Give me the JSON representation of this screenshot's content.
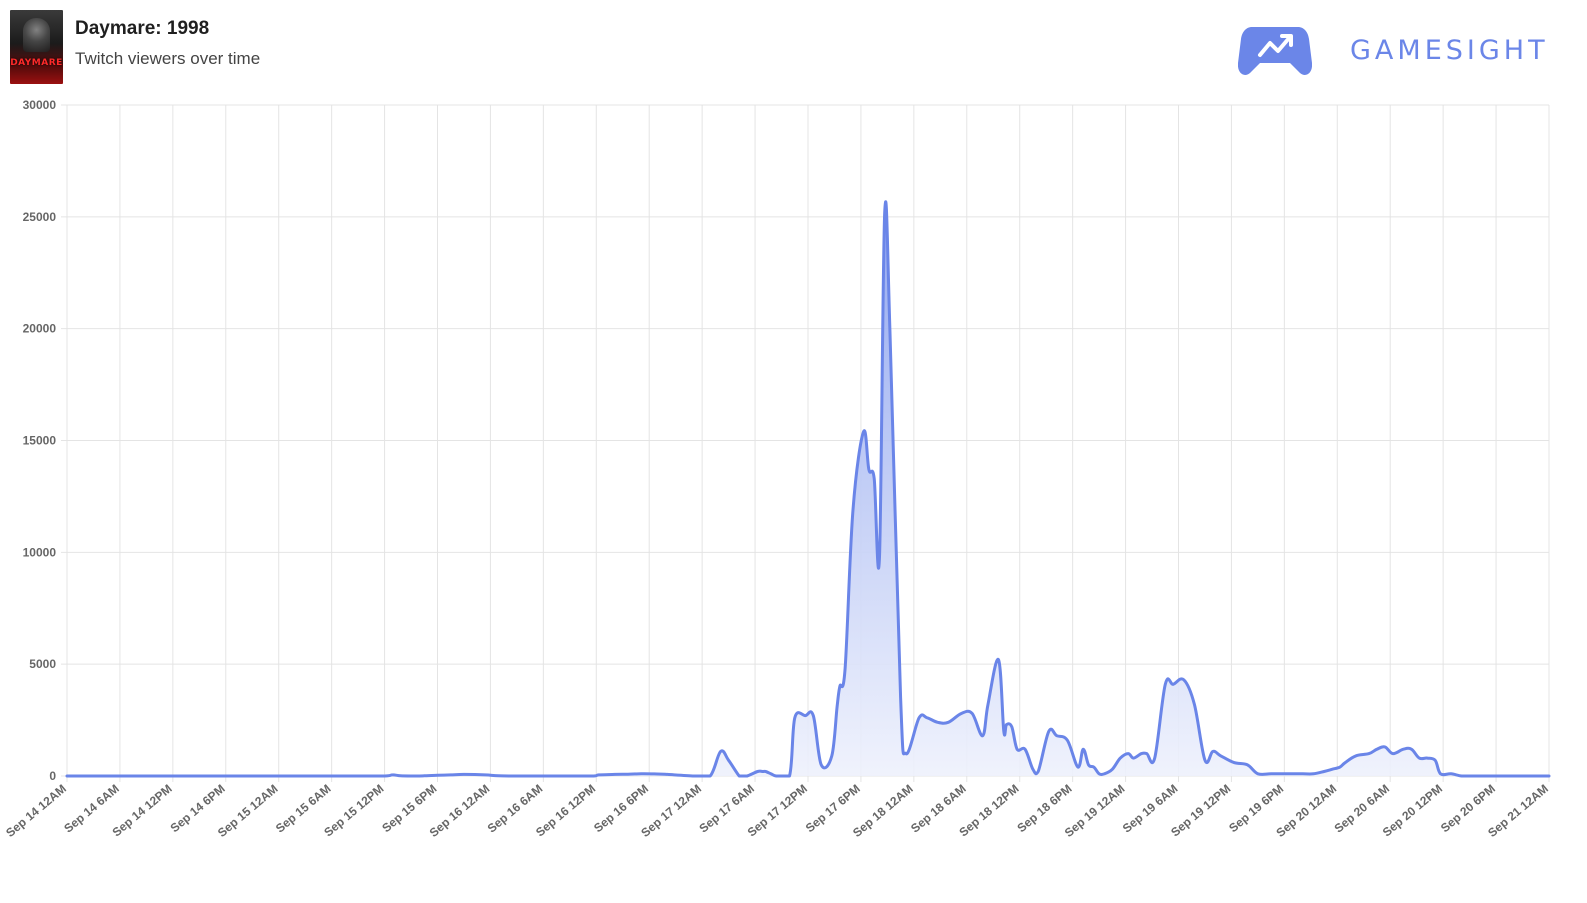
{
  "header": {
    "game_title": "Daymare: 1998",
    "subtitle": "Twitch viewers over time",
    "cover_text": "DAYMARE",
    "brand_name": "GAMESIGHT",
    "brand_logo_icon": "gamepad-trending-up-icon"
  },
  "colors": {
    "line": "#6a85e8",
    "area_top": "#8ea4ef",
    "area_bottom": "#eef1fc",
    "grid": "#e4e4e4",
    "tick_text": "#666666",
    "brand": "#6b86e8"
  },
  "chart_data": {
    "type": "area",
    "title": "",
    "xlabel": "",
    "ylabel": "",
    "ylim": [
      0,
      30000
    ],
    "yticks": [
      0,
      5000,
      10000,
      15000,
      20000,
      25000,
      30000
    ],
    "x_unit": "hours since Sep 14 12AM",
    "grid": true,
    "legend": "none",
    "xtick_labels": [
      "Sep 14 12AM",
      "Sep 14 6AM",
      "Sep 14 12PM",
      "Sep 14 6PM",
      "Sep 15 12AM",
      "Sep 15 6AM",
      "Sep 15 12PM",
      "Sep 15 6PM",
      "Sep 16 12AM",
      "Sep 16 6AM",
      "Sep 16 12PM",
      "Sep 16 6PM",
      "Sep 17 12AM",
      "Sep 17 6AM",
      "Sep 17 12PM",
      "Sep 17 6PM",
      "Sep 18 12AM",
      "Sep 18 6AM",
      "Sep 18 12PM",
      "Sep 18 6PM",
      "Sep 19 12AM",
      "Sep 19 6AM",
      "Sep 19 12PM",
      "Sep 19 6PM",
      "Sep 20 12AM",
      "Sep 20 6AM",
      "Sep 20 12PM",
      "Sep 20 6PM",
      "Sep 21 12AM"
    ],
    "series": [
      {
        "name": "Twitch viewers",
        "x": [
          0,
          12,
          24,
          36,
          36.9,
          37.8,
          39,
          40.5,
          42,
          43.5,
          45,
          47.4,
          48.9,
          51.3,
          53.4,
          54,
          59.7,
          60.3,
          62.1,
          63.6,
          65.1,
          66.9,
          68.1,
          71.1,
          72.9,
          74.1,
          75,
          76.2,
          76.5,
          77.1,
          78.3,
          78.9,
          79.2,
          79.8,
          80.4,
          81.9,
          82.5,
          83.7,
          84.6,
          85.5,
          86.7,
          87.3,
          87.6,
          88.2,
          89.1,
          90.3,
          90.9,
          91.5,
          92.1,
          92.7,
          93.3,
          94.5,
          95.1,
          96.6,
          97.5,
          98.7,
          99.9,
          101.4,
          102.6,
          103.8,
          104.4,
          105.6,
          106.2,
          106.5,
          107.1,
          107.7,
          108.6,
          109.5,
          110.1,
          111.3,
          112.2,
          113.4,
          114.6,
          115.2,
          115.8,
          116.4,
          117,
          117.6,
          118.5,
          119.4,
          120.3,
          120.9,
          121.8,
          122.4,
          123.3,
          124.5,
          125.4,
          126.6,
          127.8,
          129,
          129.9,
          130.8,
          132.3,
          133.8,
          135,
          136.5,
          138.3,
          139.2,
          140.1,
          141.3,
          142.5,
          143.4,
          144.3,
          144.9,
          146.1,
          147.6,
          148.5,
          149.4,
          150.3,
          151.5,
          152.4,
          153.3,
          154.2,
          155.1,
          155.7,
          156.9,
          158.1,
          159.3,
          160.5,
          162,
          162.9,
          163.8,
          164.7,
          166.2,
          167.4,
          168
        ],
        "values": [
          0,
          0,
          0,
          0,
          50,
          10,
          0,
          10,
          30,
          50,
          70,
          50,
          10,
          0,
          0,
          0,
          0,
          50,
          70,
          80,
          100,
          90,
          70,
          0,
          0,
          1100,
          700,
          0,
          0,
          0,
          200,
          200,
          200,
          100,
          0,
          0,
          2600,
          2700,
          2700,
          500,
          900,
          3100,
          4000,
          4800,
          11900,
          15400,
          13700,
          13300,
          9800,
          25200,
          19800,
          3500,
          1000,
          2600,
          2600,
          2400,
          2400,
          2800,
          2800,
          1800,
          3200,
          5200,
          2000,
          2300,
          2200,
          1200,
          1200,
          300,
          200,
          2000,
          1800,
          1600,
          400,
          1200,
          500,
          400,
          100,
          100,
          300,
          800,
          1000,
          800,
          1000,
          1000,
          800,
          4100,
          4100,
          4300,
          3200,
          700,
          1100,
          900,
          600,
          500,
          100,
          100,
          100,
          100,
          100,
          100,
          200,
          300,
          400,
          600,
          900,
          1000,
          1200,
          1300,
          1000,
          1200,
          1200,
          800,
          800,
          700,
          100,
          100,
          0,
          0,
          0,
          0,
          0,
          0,
          0,
          0,
          0,
          0
        ]
      }
    ]
  }
}
